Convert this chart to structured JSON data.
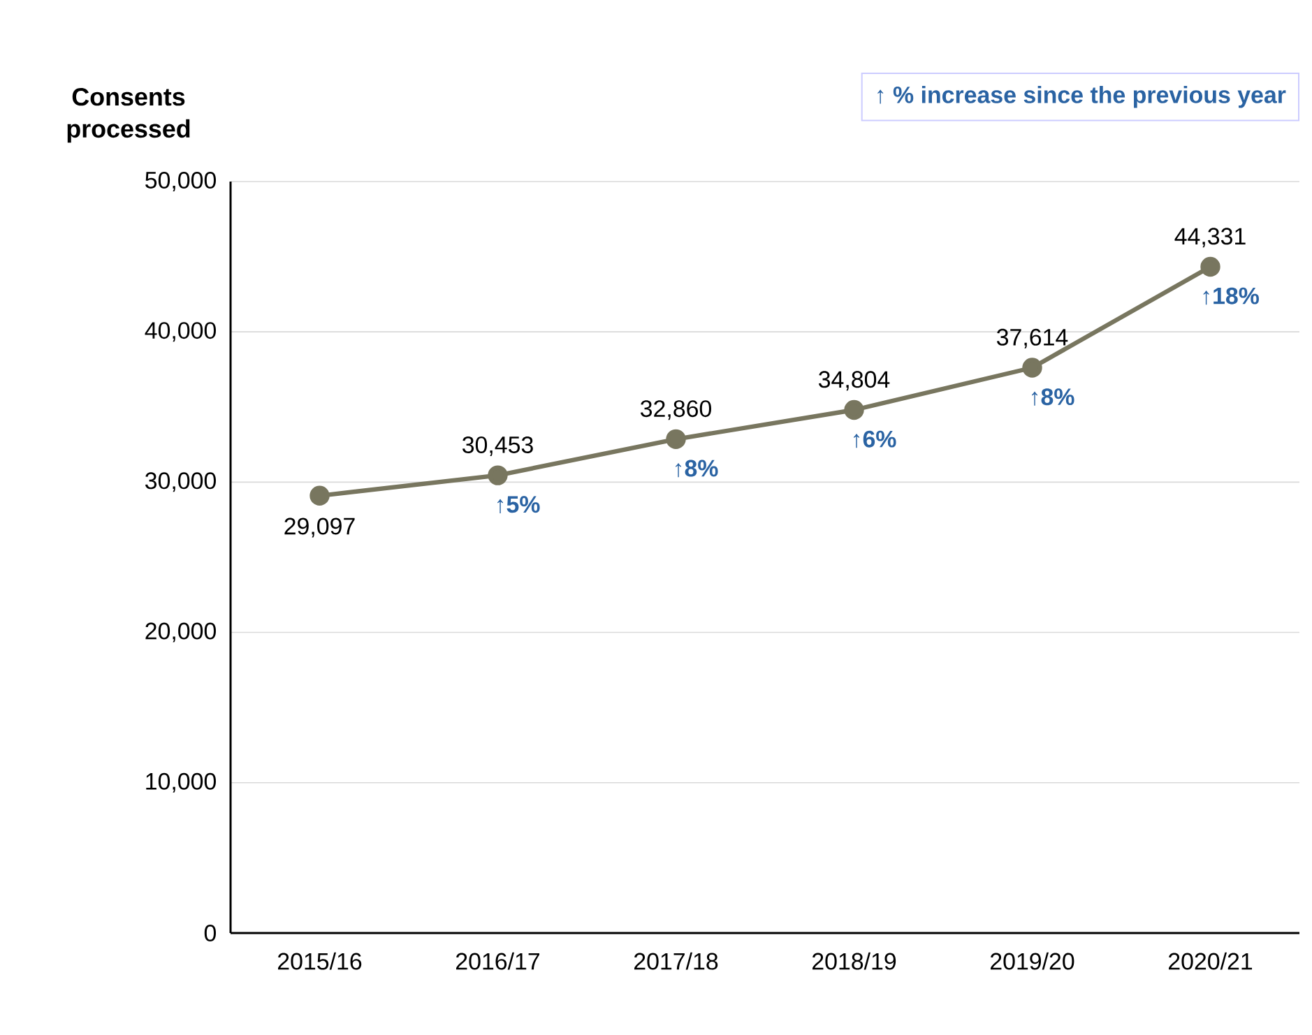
{
  "chart_data": {
    "type": "line",
    "ylabel": "Consents processed",
    "categories": [
      "2015/16",
      "2016/17",
      "2017/18",
      "2018/19",
      "2019/20",
      "2020/21"
    ],
    "series": [
      {
        "color": "#78765f",
        "values": [
          29097,
          30453,
          32860,
          34804,
          37614,
          44331
        ],
        "value_labels": [
          "29,097",
          "30,453",
          "32,860",
          "34,804",
          "37,614",
          "44,331"
        ]
      }
    ],
    "ylim": [
      0,
      50000
    ],
    "yticks": [
      {
        "value": 0,
        "label": "0"
      },
      {
        "value": 10000,
        "label": "10,000"
      },
      {
        "value": 20000,
        "label": "20,000"
      },
      {
        "value": 30000,
        "label": "30,000"
      },
      {
        "value": 40000,
        "label": "40,000"
      },
      {
        "value": 50000,
        "label": "50,000"
      }
    ],
    "grid": "y",
    "marker": "circle",
    "line_style": "solid",
    "annotations": [
      "↑ % increase since the previous year",
      {
        "text": "↑5%",
        "x": "2016/17",
        "y": 30453
      },
      {
        "text": "↑8%",
        "x": "2017/18",
        "y": 32860
      },
      {
        "text": "↑6%",
        "x": "2018/19",
        "y": 34804
      },
      {
        "text": "↑8%",
        "x": "2019/20",
        "y": 37614
      },
      {
        "text": "↑18%",
        "x": "2020/21",
        "y": 44331
      }
    ]
  }
}
